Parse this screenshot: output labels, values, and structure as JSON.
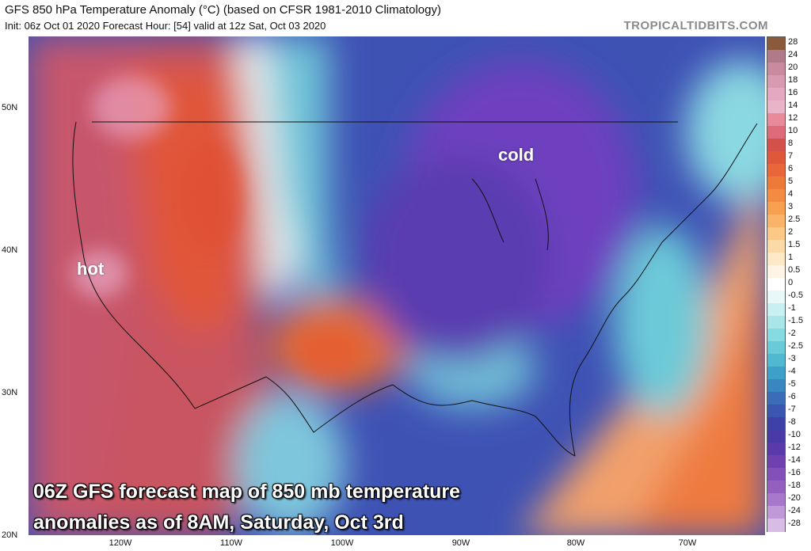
{
  "header": {
    "title": "GFS 850 hPa Temperature Anomaly (°C) (based on CFSR 1981-2010 Climatology)",
    "subtitle": "Init: 06z Oct 01 2020   Forecast Hour: [54]   valid at 12z Sat, Oct 03 2020",
    "brand": "TROPICALTIDBITS.COM"
  },
  "annotations": {
    "hot": "hot",
    "cold": "cold",
    "caption_line1": "06Z GFS forecast map of 850 mb temperature",
    "caption_line2": "anomalies as of 8AM, Saturday, Oct 3rd"
  },
  "lat_labels": [
    "50N",
    "40N",
    "30N",
    "20N"
  ],
  "lon_labels": [
    "120W",
    "110W",
    "100W",
    "90W",
    "80W",
    "70W"
  ],
  "colorbar": {
    "labels": [
      "28",
      "24",
      "20",
      "18",
      "16",
      "14",
      "12",
      "10",
      "8",
      "7",
      "6",
      "5",
      "4",
      "3",
      "2.5",
      "2",
      "1.5",
      "1",
      "0.5",
      "0",
      "-0.5",
      "-1",
      "-1.5",
      "-2",
      "-2.5",
      "-3",
      "-4",
      "-5",
      "-6",
      "-7",
      "-8",
      "-10",
      "-12",
      "-14",
      "-16",
      "-18",
      "-20",
      "-24",
      "-28"
    ],
    "colors": [
      "#8b5a3c",
      "#b07a8a",
      "#c98aa0",
      "#d89ab0",
      "#e4a8c0",
      "#e9b4c8",
      "#e98a9a",
      "#de6a7a",
      "#d4504a",
      "#e0583a",
      "#e8663a",
      "#ee7a3a",
      "#f38c42",
      "#f6a050",
      "#f9b46a",
      "#fbc888",
      "#fcdaa8",
      "#fde8c8",
      "#fff4e6",
      "#ffffff",
      "#e8f8f8",
      "#c8f0f2",
      "#a8e6ea",
      "#86dae2",
      "#6acbd8",
      "#50b8d0",
      "#3ea0c8",
      "#3a86c0",
      "#3a6cb8",
      "#3a56b0",
      "#3e42a8",
      "#4a3aa8",
      "#5a3aaa",
      "#6e40b0",
      "#8250b8",
      "#9460c0",
      "#a878cc",
      "#c09ad8",
      "#d8bce6"
    ]
  }
}
